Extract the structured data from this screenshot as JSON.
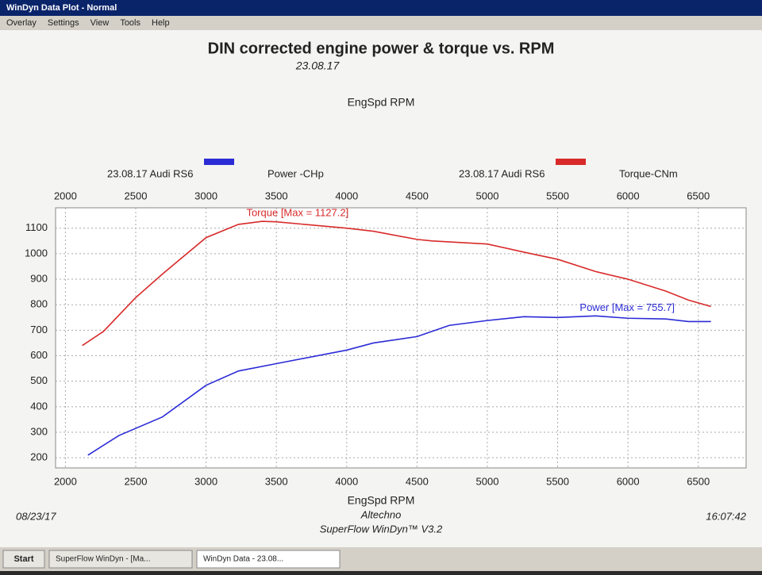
{
  "window_title": "WinDyn Data Plot - Normal",
  "menu": [
    "Overlay",
    "Settings",
    "View",
    "Tools",
    "Help"
  ],
  "chart_data": {
    "type": "line",
    "title": "DIN corrected engine power & torque vs. RPM",
    "subtitle": "23.08.17",
    "legend_prefix": [
      "23.08.17 Audi RS6",
      "23.08.17 Audi RS6"
    ],
    "xlabel": "EngSpd RPM",
    "x2label": "EngSpd RPM",
    "xlim": [
      1930,
      6840
    ],
    "xticks": [
      2000,
      2500,
      3000,
      3500,
      4000,
      4500,
      5000,
      5500,
      6000,
      6500
    ],
    "ylim": [
      160,
      1180
    ],
    "yticks": [
      200,
      300,
      400,
      500,
      600,
      700,
      800,
      900,
      1000,
      1100
    ],
    "grid": true,
    "series": [
      {
        "name": "Power -CHp",
        "color": "#2b2bd6",
        "x": [
          2160,
          2380,
          2690,
          3000,
          3230,
          3500,
          4000,
          4190,
          4500,
          4730,
          5000,
          5260,
          5500,
          5770,
          6000,
          6270,
          6430,
          6590
        ],
        "values": [
          210,
          287,
          360,
          484,
          540,
          569,
          622,
          650,
          675,
          719,
          738,
          753,
          750,
          756,
          747,
          744,
          734,
          734
        ],
        "annotation": "Power  [Max = 755.7]"
      },
      {
        "name": "Torque-CNm",
        "color": "#d82a2a",
        "x": [
          2120,
          2270,
          2500,
          2700,
          3000,
          3230,
          3400,
          3500,
          4000,
          4190,
          4500,
          4610,
          5000,
          5260,
          5500,
          5770,
          6000,
          6270,
          6430,
          6590
        ],
        "values": [
          640,
          695,
          828,
          925,
          1063,
          1115,
          1127,
          1125,
          1100,
          1088,
          1056,
          1050,
          1038,
          1006,
          978,
          930,
          900,
          853,
          818,
          793
        ],
        "annotation": "Torque [Max = 1127.2]"
      }
    ]
  },
  "footer": {
    "date": "08/23/17",
    "company": "Altechno",
    "software": "SuperFlow WinDyn™ V3.2",
    "time": "16:07:42"
  },
  "taskbar": {
    "start": "Start",
    "items": [
      "SuperFlow WinDyn - [Ma...",
      "WinDyn Data - 23.08..."
    ]
  }
}
